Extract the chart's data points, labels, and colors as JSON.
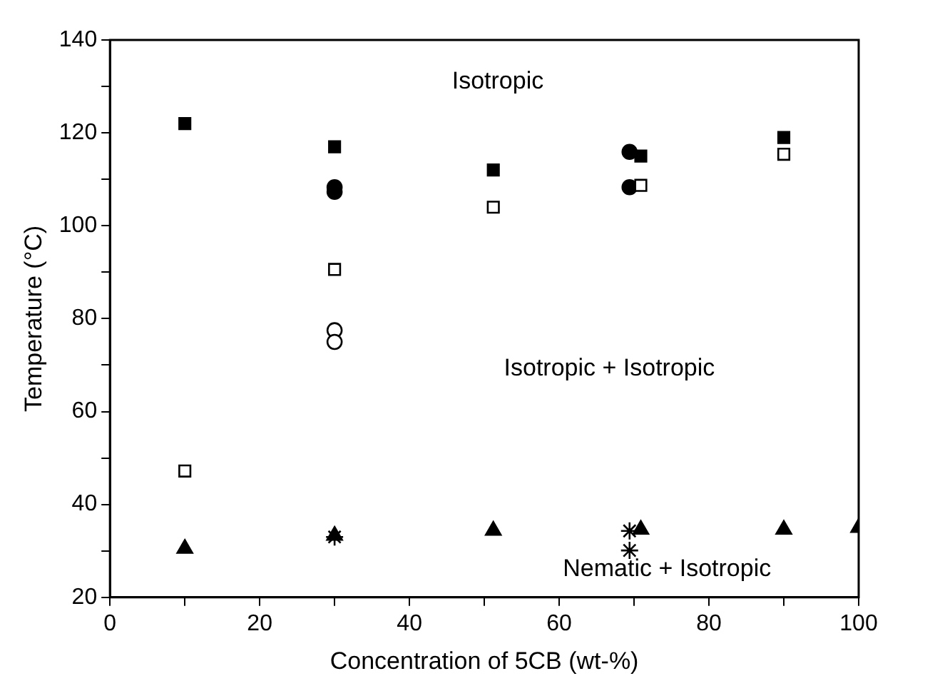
{
  "chart_data": {
    "type": "scatter",
    "xlabel": "Concentration of 5CB (wt-%)",
    "ylabel": "Temperature (°C)",
    "xlim": [
      0,
      100
    ],
    "ylim": [
      20,
      140
    ],
    "xticks": [
      0,
      {
        "value": 10,
        "label": null
      },
      20,
      {
        "value": 30,
        "label": null
      },
      40,
      {
        "value": 50,
        "label": null
      },
      60,
      {
        "value": 70,
        "label": null
      },
      80,
      {
        "value": 90,
        "label": null
      },
      100
    ],
    "yticks": [
      20,
      {
        "value": 30,
        "label": null
      },
      40,
      {
        "value": 50,
        "label": null
      },
      60,
      {
        "value": 70,
        "label": null
      },
      80,
      {
        "value": 90,
        "label": null
      },
      100,
      {
        "value": 110,
        "label": null
      },
      120,
      {
        "value": 130,
        "label": null
      },
      140
    ],
    "grid": false,
    "legend": false,
    "series": [
      {
        "color": "#000000",
        "marker": "square",
        "x": [
          10,
          30,
          51.2,
          70.9,
          90
        ],
        "values": [
          122,
          117,
          112,
          115,
          119
        ]
      },
      {
        "color": "#ffffff",
        "marker": "square",
        "x": [
          10,
          30,
          51.2,
          70.9,
          90
        ],
        "values": [
          47.2,
          90.6,
          104,
          108.7,
          115.4
        ]
      },
      {
        "color": "#000000",
        "marker": "circle",
        "x": [
          30,
          30,
          69.4,
          69.4
        ],
        "values": [
          108.3,
          107.3,
          115.9,
          108.3
        ]
      },
      {
        "color": "#ffffff",
        "marker": "circle",
        "x": [
          30,
          30
        ],
        "values": [
          77.5,
          75
        ]
      },
      {
        "color": "#000000",
        "marker": "triangle",
        "x": [
          10,
          30,
          51.2,
          70.9,
          90,
          100
        ],
        "values": [
          30.5,
          33.3,
          34.4,
          34.6,
          34.6,
          35
        ]
      },
      {
        "color": "#000000",
        "marker": "cross",
        "x": [
          30,
          69.4,
          69.4
        ],
        "values": [
          33,
          34.3,
          30.1
        ]
      }
    ],
    "annotations": [
      "Isotropic",
      "Isotropic + Isotropic",
      "Nematic + Isotropic"
    ]
  }
}
